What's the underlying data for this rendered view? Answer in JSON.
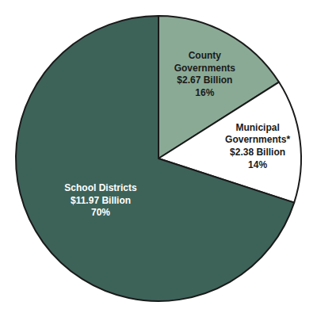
{
  "chart_data": {
    "type": "pie",
    "categories": [
      "County\nGovernments\n$2.67 Billion\n16%",
      "Municipal\nGovernments*\n$2.38 Billion\n14%",
      "School Districts\n$11.97 Billion\n70%"
    ],
    "values": [
      16,
      14,
      70
    ],
    "colors": [
      "#8aaa96",
      "#ffffff",
      "#3d6359"
    ]
  }
}
